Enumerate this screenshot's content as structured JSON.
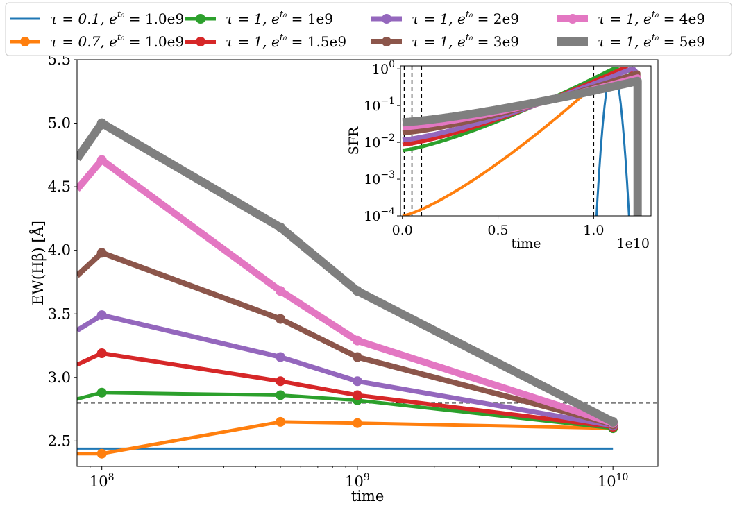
{
  "chart_data": [
    {
      "type": "line",
      "name": "main",
      "xscale": "log",
      "xlabel": "time",
      "ylabel": "EW(Hβ) [Å]",
      "xlim": [
        80000000,
        15000000000
      ],
      "ylim": [
        2.3,
        5.5
      ],
      "xticks": [
        {
          "value": 100000000,
          "base": "10",
          "exp": "8"
        },
        {
          "value": 1000000000,
          "base": "10",
          "exp": "9"
        },
        {
          "value": 10000000000,
          "base": "10",
          "exp": "10"
        }
      ],
      "yticks": [
        2.5,
        3.0,
        3.5,
        4.0,
        4.5,
        5.0,
        5.5
      ],
      "ytick_labels": [
        "2.5",
        "3.0",
        "3.5",
        "4.0",
        "4.5",
        "5.0",
        "5.5"
      ],
      "reference_line": {
        "y": 2.8,
        "style": "dashed",
        "color": "#000000"
      },
      "series": [
        {
          "name": "tau=0.1",
          "color": "#1f77b4",
          "markers": false,
          "width": 3,
          "x": [
            80000000,
            10000000000
          ],
          "y": [
            2.44,
            2.44
          ]
        },
        {
          "name": "tau=0.7",
          "color": "#ff7f0e",
          "markers": true,
          "width": 5,
          "x": [
            80000000,
            100000000,
            500000000,
            1000000000,
            10000000000
          ],
          "y": [
            2.4,
            2.4,
            2.65,
            2.64,
            2.6
          ]
        },
        {
          "name": "tau=1, 1e9",
          "color": "#2ca02c",
          "markers": true,
          "width": 5,
          "x": [
            80000000,
            100000000,
            500000000,
            1000000000,
            10000000000
          ],
          "y": [
            2.83,
            2.88,
            2.86,
            2.82,
            2.6
          ]
        },
        {
          "name": "tau=1, 1.5e9",
          "color": "#d62728",
          "markers": true,
          "width": 6,
          "x": [
            80000000,
            100000000,
            500000000,
            1000000000,
            10000000000
          ],
          "y": [
            3.1,
            3.19,
            2.97,
            2.86,
            2.61
          ]
        },
        {
          "name": "tau=1, 2e9",
          "color": "#9467bd",
          "markers": true,
          "width": 7,
          "x": [
            80000000,
            100000000,
            500000000,
            1000000000,
            10000000000
          ],
          "y": [
            3.37,
            3.49,
            3.16,
            2.97,
            2.62
          ]
        },
        {
          "name": "tau=1, 3e9",
          "color": "#8c564b",
          "markers": true,
          "width": 8,
          "x": [
            80000000,
            100000000,
            500000000,
            1000000000,
            10000000000
          ],
          "y": [
            3.8,
            3.98,
            3.46,
            3.16,
            2.63
          ]
        },
        {
          "name": "tau=1, 4e9",
          "color": "#e377c2",
          "markers": true,
          "width": 10,
          "x": [
            80000000,
            100000000,
            500000000,
            1000000000,
            10000000000
          ],
          "y": [
            4.48,
            4.71,
            3.68,
            3.29,
            2.64
          ]
        },
        {
          "name": "tau=1, 5e9",
          "color": "#7f7f7f",
          "markers": true,
          "width": 12,
          "x": [
            80000000,
            100000000,
            500000000,
            1000000000,
            10000000000
          ],
          "y": [
            4.72,
            5.0,
            4.18,
            3.68,
            2.65
          ]
        }
      ]
    },
    {
      "type": "line",
      "name": "inset",
      "yscale": "log",
      "xlabel": "time",
      "ylabel": "SFR",
      "offset_label": "1e10",
      "xlim": [
        -0.01,
        1.3
      ],
      "ylim": [
        0.0001,
        1.2
      ],
      "xticks": [
        0.0,
        0.5,
        1.0
      ],
      "xtick_labels": [
        "0.0",
        "0.5",
        "1.0"
      ],
      "yticks": [
        {
          "value": 0.0001,
          "base": "10",
          "exp": "−4"
        },
        {
          "value": 0.001,
          "base": "10",
          "exp": "−3"
        },
        {
          "value": 0.01,
          "base": "10",
          "exp": "−2"
        },
        {
          "value": 0.1,
          "base": "10",
          "exp": "−1"
        },
        {
          "value": 1,
          "base": "10",
          "exp": "0"
        }
      ],
      "vlines": [
        0.01,
        0.05,
        0.1,
        1.0
      ],
      "t_end": 1.23,
      "series": [
        {
          "name": "tau=0.1",
          "color": "#1f77b4",
          "width": 3,
          "tau": 0.01,
          "t0": 1.1,
          "kind": "gauss"
        },
        {
          "name": "tau=0.7",
          "color": "#ff7f0e",
          "width": 4,
          "tau": 0.7,
          "t0": 1.1,
          "kind": "lognormal"
        },
        {
          "name": "tau=1, 1e9",
          "color": "#2ca02c",
          "width": 5,
          "tau": 1.0,
          "t0": 1.1,
          "kind": "lognormal"
        },
        {
          "name": "tau=1, 1.5e9",
          "color": "#d62728",
          "width": 6,
          "tau": 1.0,
          "t0": 1.15,
          "kind": "lognormal"
        },
        {
          "name": "tau=1, 2e9",
          "color": "#9467bd",
          "width": 7,
          "tau": 1.0,
          "t0": 1.2,
          "kind": "lognormal"
        },
        {
          "name": "tau=1, 3e9",
          "color": "#8c564b",
          "width": 8,
          "tau": 1.0,
          "t0": 1.3,
          "kind": "lognormal"
        },
        {
          "name": "tau=1, 4e9",
          "color": "#e377c2",
          "width": 10,
          "tau": 1.0,
          "t0": 1.4,
          "kind": "lognormal"
        },
        {
          "name": "tau=1, 5e9",
          "color": "#7f7f7f",
          "width": 12,
          "tau": 1.0,
          "t0": 1.5,
          "kind": "lognormal"
        }
      ]
    }
  ],
  "legend": {
    "placement": "top",
    "columns": 4,
    "entries": [
      {
        "tau_label": "τ = 0.1,",
        "e_label": "e",
        "sup": "t₀",
        "value": " = 1.0e9",
        "color": "#1f77b4",
        "marker": false,
        "width": 3
      },
      {
        "tau_label": "τ = 0.7,",
        "e_label": "e",
        "sup": "t₀",
        "value": " = 1.0e9",
        "color": "#ff7f0e",
        "marker": true,
        "width": 5
      },
      {
        "tau_label": "τ = 1,",
        "e_label": "e",
        "sup": "t₀",
        "value": " = 1e9",
        "color": "#2ca02c",
        "marker": true,
        "width": 5
      },
      {
        "tau_label": "τ = 1,",
        "e_label": "e",
        "sup": "t₀",
        "value": " = 1.5e9",
        "color": "#d62728",
        "marker": true,
        "width": 6
      },
      {
        "tau_label": "τ = 1,",
        "e_label": "e",
        "sup": "t₀",
        "value": " = 2e9",
        "color": "#9467bd",
        "marker": true,
        "width": 7
      },
      {
        "tau_label": "τ = 1,",
        "e_label": "e",
        "sup": "t₀",
        "value": " = 3e9",
        "color": "#8c564b",
        "marker": true,
        "width": 8
      },
      {
        "tau_label": "τ = 1,",
        "e_label": "e",
        "sup": "t₀",
        "value": " = 4e9",
        "color": "#e377c2",
        "marker": true,
        "width": 10
      },
      {
        "tau_label": "τ = 1,",
        "e_label": "e",
        "sup": "t₀",
        "value": " = 5e9",
        "color": "#7f7f7f",
        "marker": true,
        "width": 12
      }
    ]
  }
}
